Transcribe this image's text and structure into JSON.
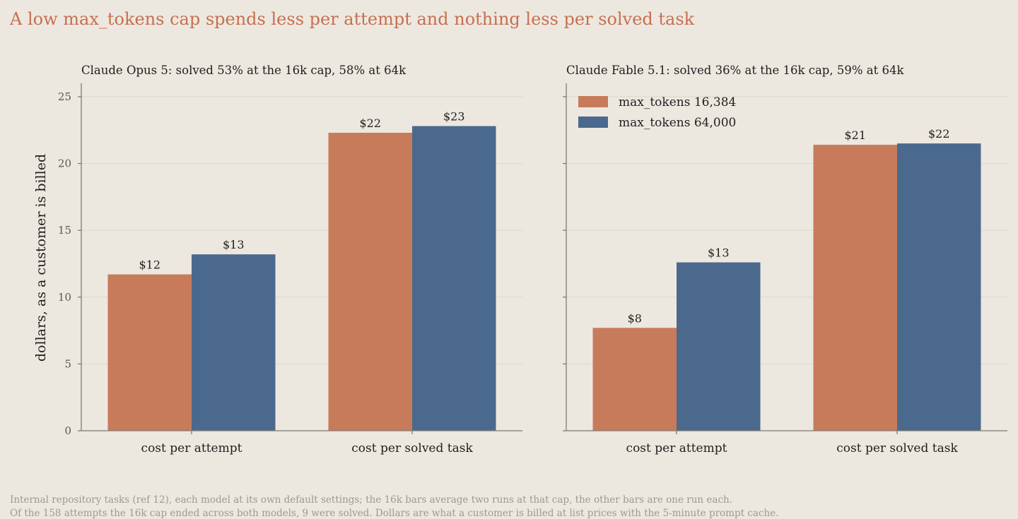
{
  "title": "A low max_tokens cap spends less per attempt and nothing less per solved task",
  "colors": {
    "max_tokens_16384": "#c87b5b",
    "max_tokens_64000": "#4b698d",
    "title": "#c76f50",
    "background": "#ece8e0",
    "grid": "#dcd7c8",
    "axis": "#7f7b73",
    "note": "#9d9990"
  },
  "chart_data": [
    {
      "type": "bar",
      "title": "Claude Opus 5: solved 53% at the 16k cap, 58% at 64k",
      "categories": [
        "cost per attempt",
        "cost per solved task"
      ],
      "series": [
        {
          "name": "max_tokens 16,384",
          "values": [
            11.7,
            22.3
          ],
          "labels": [
            "$12",
            "$22"
          ]
        },
        {
          "name": "max_tokens 64,000",
          "values": [
            13.2,
            22.8
          ],
          "labels": [
            "$13",
            "$23"
          ]
        }
      ],
      "ylabel": "dollars, as a customer is billed",
      "ylim": [
        0,
        26
      ],
      "yticks": [
        "0",
        "5",
        "10",
        "15",
        "20",
        "25"
      ],
      "grid": true,
      "legend": "none"
    },
    {
      "type": "bar",
      "title": "Claude Fable 5.1: solved 36% at the 16k cap, 59% at 64k",
      "categories": [
        "cost per attempt",
        "cost per solved task"
      ],
      "series": [
        {
          "name": "max_tokens 16,384",
          "values": [
            7.7,
            21.4
          ],
          "labels": [
            "$8",
            "$21"
          ]
        },
        {
          "name": "max_tokens 64,000",
          "values": [
            12.6,
            21.5
          ],
          "labels": [
            "$13",
            "$22"
          ]
        }
      ],
      "ylabel": "",
      "ylim": [
        0,
        26
      ],
      "yticks": [],
      "grid": true,
      "legend": "top-left"
    }
  ],
  "notes": [
    "Internal repository tasks (ref 12), each model at its own default settings; the 16k bars average two runs at that cap, the other bars are one run each.",
    "Of the 158 attempts the 16k cap ended across both models, 9 were solved. Dollars are what a customer is billed at list prices with the 5-minute prompt cache."
  ]
}
